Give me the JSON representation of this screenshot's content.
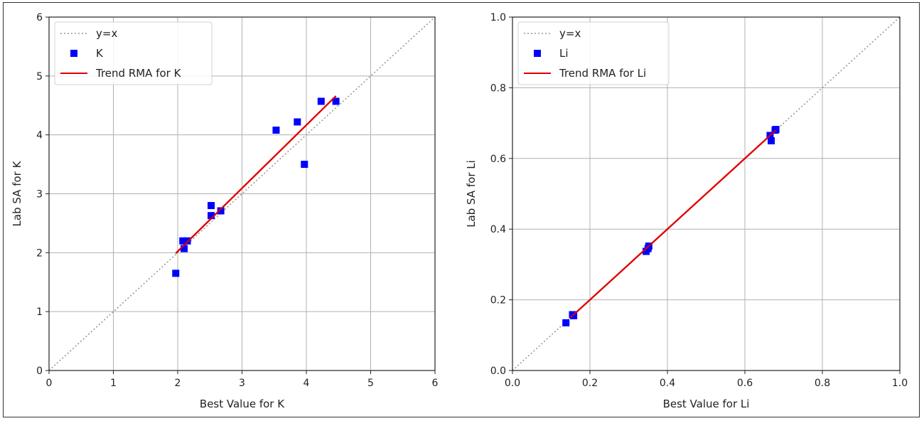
{
  "chart_data": [
    {
      "type": "scatter",
      "xlabel": "Best Value for K",
      "ylabel": "Lab SA for K",
      "xlim": [
        0,
        6
      ],
      "ylim": [
        0,
        6
      ],
      "xticks": [
        0,
        1,
        2,
        3,
        4,
        5,
        6
      ],
      "yticks": [
        0,
        1,
        2,
        3,
        4,
        5,
        6
      ],
      "xtick_labels": [
        "0",
        "1",
        "2",
        "3",
        "4",
        "5",
        "6"
      ],
      "ytick_labels": [
        "0",
        "1",
        "2",
        "3",
        "4",
        "5",
        "6"
      ],
      "grid": true,
      "legend_position": "top-left",
      "series": [
        {
          "name": "y=x",
          "kind": "reference-line",
          "style": "dotted",
          "color": "#999999",
          "points": [
            [
              0,
              0
            ],
            [
              6,
              6
            ]
          ]
        },
        {
          "name": "K",
          "kind": "points",
          "marker": "square",
          "color": "#0000ff",
          "points": [
            [
              1.97,
              1.65
            ],
            [
              2.08,
              2.2
            ],
            [
              2.1,
              2.07
            ],
            [
              2.15,
              2.2
            ],
            [
              2.52,
              2.8
            ],
            [
              2.52,
              2.63
            ],
            [
              2.67,
              2.71
            ],
            [
              3.53,
              4.08
            ],
            [
              3.86,
              4.22
            ],
            [
              3.97,
              3.5
            ],
            [
              4.23,
              4.57
            ],
            [
              4.46,
              4.57
            ]
          ]
        },
        {
          "name": "Trend RMA for K",
          "kind": "trend-line",
          "color": "#e00000",
          "points": [
            [
              1.97,
              1.99
            ],
            [
              4.46,
              4.66
            ]
          ]
        }
      ]
    },
    {
      "type": "scatter",
      "xlabel": "Best Value for  Li",
      "ylabel": "Lab SA for Li",
      "xlim": [
        0,
        1
      ],
      "ylim": [
        0,
        1
      ],
      "xticks": [
        0,
        0.2,
        0.4,
        0.6,
        0.8,
        1.0
      ],
      "yticks": [
        0,
        0.2,
        0.4,
        0.6,
        0.8,
        1.0
      ],
      "xtick_labels": [
        "0.0",
        "0.2",
        "0.4",
        "0.6",
        "0.8",
        "1.0"
      ],
      "ytick_labels": [
        "0.0",
        "0.2",
        "0.4",
        "0.6",
        "0.8",
        "1.0"
      ],
      "grid": true,
      "legend_position": "top-left",
      "series": [
        {
          "name": "y=x",
          "kind": "reference-line",
          "style": "dotted",
          "color": "#999999",
          "points": [
            [
              0,
              0
            ],
            [
              1,
              1
            ]
          ]
        },
        {
          "name": "Li",
          "kind": "points",
          "marker": "square",
          "color": "#0000ff",
          "points": [
            [
              0.138,
              0.135
            ],
            [
              0.155,
              0.158
            ],
            [
              0.158,
              0.155
            ],
            [
              0.345,
              0.337
            ],
            [
              0.35,
              0.345
            ],
            [
              0.352,
              0.352
            ],
            [
              0.665,
              0.665
            ],
            [
              0.668,
              0.65
            ],
            [
              0.678,
              0.68
            ],
            [
              0.68,
              0.682
            ]
          ]
        },
        {
          "name": "Trend RMA for Li",
          "kind": "trend-line",
          "color": "#e00000",
          "points": [
            [
              0.15,
              0.15
            ],
            [
              0.68,
              0.68
            ]
          ]
        }
      ]
    }
  ]
}
